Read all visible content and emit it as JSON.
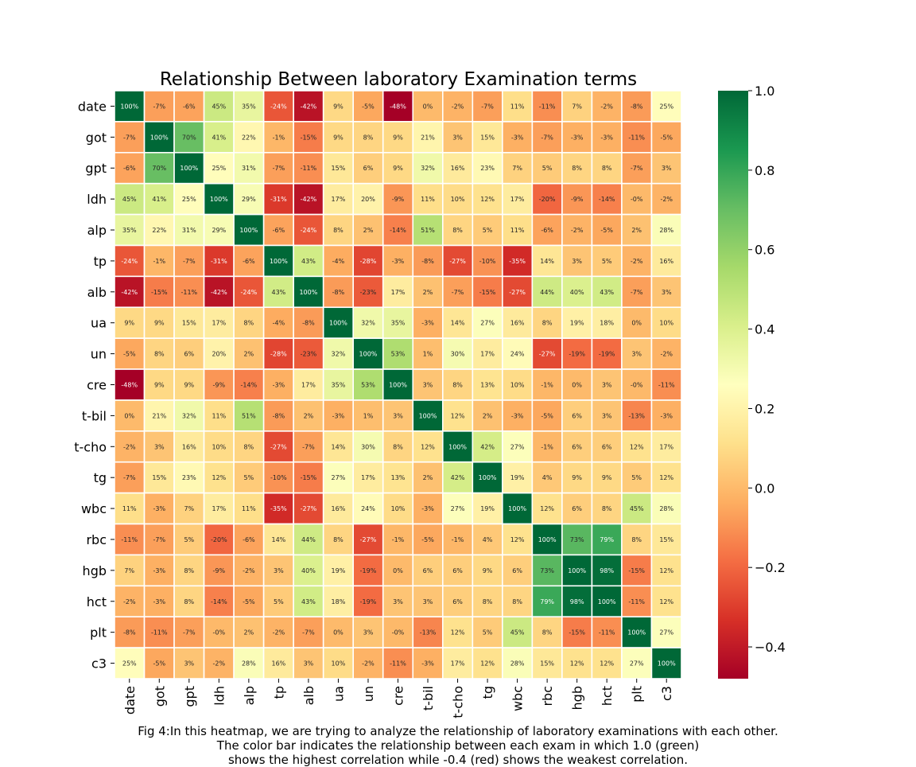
{
  "chart_data": {
    "type": "heatmap",
    "title": "Relationship Between laboratory Examination terms",
    "labels": [
      "date",
      "got",
      "gpt",
      "ldh",
      "alp",
      "tp",
      "alb",
      "ua",
      "un",
      "cre",
      "t-bil",
      "t-cho",
      "tg",
      "wbc",
      "rbc",
      "hgb",
      "hct",
      "plt",
      "c3"
    ],
    "values": [
      [
        100,
        -7,
        -6,
        45,
        35,
        -24,
        -42,
        9,
        -5,
        -48,
        0,
        -2,
        -7,
        11,
        -11,
        7,
        -2,
        -8,
        25
      ],
      [
        -7,
        100,
        70,
        41,
        22,
        -1,
        -15,
        9,
        8,
        9,
        21,
        3,
        15,
        -3,
        -7,
        -3,
        -3,
        -11,
        -5
      ],
      [
        -6,
        70,
        100,
        25,
        31,
        -7,
        -11,
        15,
        6,
        9,
        32,
        16,
        23,
        7,
        5,
        8,
        8,
        -7,
        3
      ],
      [
        45,
        41,
        25,
        100,
        29,
        -31,
        -42,
        17,
        20,
        -9,
        11,
        10,
        12,
        17,
        -20,
        -9,
        -14,
        -0.4,
        -2
      ],
      [
        35,
        22,
        31,
        29,
        100,
        -6,
        -24,
        8,
        2,
        -14,
        51,
        8,
        5,
        11,
        -6,
        -2,
        -5,
        2,
        28
      ],
      [
        -24,
        -1,
        -7,
        -31,
        -6,
        100,
        43,
        -4,
        -28,
        -3,
        -8,
        -27,
        -10,
        -35,
        14,
        3,
        5,
        -2,
        16
      ],
      [
        -42,
        -15,
        -11,
        -42,
        -24,
        43,
        100,
        -8,
        -23,
        17,
        2,
        -7,
        -15,
        -27,
        44,
        40,
        43,
        -7,
        3
      ],
      [
        9,
        9,
        15,
        17,
        8,
        -4,
        -8,
        100,
        32,
        35,
        -3,
        14,
        27,
        16,
        8,
        19,
        18,
        0,
        10
      ],
      [
        -5,
        8,
        6,
        20,
        2,
        -28,
        -23,
        32,
        100,
        53,
        1,
        30,
        17,
        24,
        -27,
        -19,
        -19,
        3,
        -2
      ],
      [
        -48,
        9,
        9,
        -9,
        -14,
        -3,
        17,
        35,
        53,
        100,
        3,
        8,
        13,
        10,
        -1,
        0,
        3,
        -0.4,
        -11
      ],
      [
        0,
        21,
        32,
        11,
        51,
        -8,
        2,
        -3,
        1,
        3,
        100,
        12,
        2,
        -3,
        -5,
        6,
        3,
        -13,
        -3
      ],
      [
        -2,
        3,
        16,
        10,
        8,
        -27,
        -7,
        14,
        30,
        8,
        12,
        100,
        42,
        27,
        -1,
        6,
        6,
        12,
        17
      ],
      [
        -7,
        15,
        23,
        12,
        5,
        -10,
        -15,
        27,
        17,
        13,
        2,
        42,
        100,
        19,
        4,
        9,
        9,
        5,
        12
      ],
      [
        11,
        -3,
        7,
        17,
        11,
        -35,
        -27,
        16,
        24,
        10,
        -3,
        27,
        19,
        100,
        12,
        6,
        8,
        45,
        28
      ],
      [
        -11,
        -7,
        5,
        -20,
        -6,
        14,
        44,
        8,
        -27,
        -1,
        -5,
        -1,
        4,
        12,
        100,
        73,
        79,
        8,
        15
      ],
      [
        7,
        -3,
        8,
        -9,
        -2,
        3,
        40,
        19,
        -19,
        0,
        6,
        6,
        9,
        6,
        73,
        100,
        98,
        -15,
        12
      ],
      [
        -2,
        -3,
        8,
        -14,
        -5,
        5,
        43,
        18,
        -19,
        3,
        3,
        6,
        8,
        8,
        79,
        98,
        100,
        -11,
        12
      ],
      [
        -8,
        -11,
        -7,
        -0.4,
        2,
        -2,
        -7,
        0,
        3,
        -0.4,
        -13,
        12,
        5,
        45,
        8,
        -15,
        -11,
        100,
        27
      ],
      [
        25,
        -5,
        3,
        -2,
        28,
        16,
        3,
        10,
        -2,
        -11,
        -3,
        17,
        12,
        28,
        15,
        12,
        12,
        27,
        100
      ]
    ],
    "value_format": "percent",
    "colormap": "RdYlGn",
    "colorbar": {
      "min": -0.48,
      "max": 1.0,
      "ticks": [
        1.0,
        0.8,
        0.6,
        0.4,
        0.2,
        0.0,
        -0.2,
        -0.4
      ],
      "tick_labels": [
        "1.0",
        "0.8",
        "0.6",
        "0.4",
        "0.2",
        "0.0",
        "−0.2",
        "−0.4"
      ]
    },
    "grid_lines": true,
    "grid_color": "#ffffff"
  },
  "caption": {
    "line1": "Fig 4:In this heatmap, we are trying to analyze the relationship of laboratory examinations with each other.",
    "line2": "The color bar indicates the relationship between each exam in which 1.0 (green)",
    "line3": "shows the highest correlation while -0.4 (red) shows the weakest correlation."
  }
}
